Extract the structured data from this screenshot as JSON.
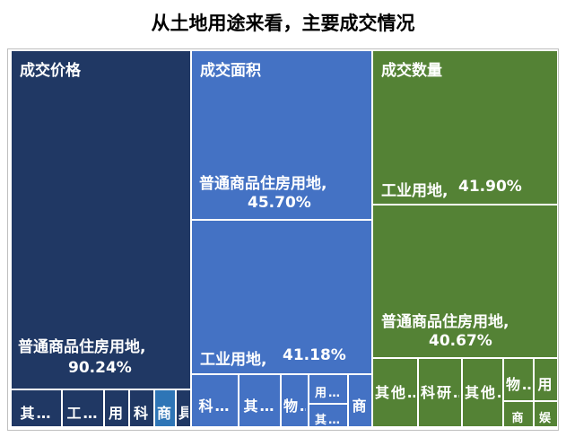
{
  "chart_data": {
    "type": "treemap",
    "title": "从土地用途来看，主要成交情况",
    "groups": [
      {
        "name": "成交价格",
        "color": "#203864",
        "items": [
          {
            "label": "普通商品住房用地,",
            "value_label": "90.24%",
            "value": 90.24
          },
          {
            "label": "其…",
            "value": 3.2
          },
          {
            "label": "工…",
            "value": 2.3
          },
          {
            "label": "用",
            "value": 1.6
          },
          {
            "label": "科",
            "value": 1.3
          },
          {
            "label": "商",
            "value": 1.0,
            "color": "#2e75b6"
          },
          {
            "label": "具",
            "value": 0.36
          }
        ]
      },
      {
        "name": "成交面积",
        "color": "#4472c4",
        "items": [
          {
            "label": "普通商品住房用地,",
            "value_label": "45.70%",
            "value": 45.7
          },
          {
            "label": "工业用地,",
            "value_label": "41.18%",
            "value": 41.18
          },
          {
            "label": "科…",
            "value": 3.2
          },
          {
            "label": "其…",
            "value": 3.0
          },
          {
            "label": "物…",
            "value": 2.1
          },
          {
            "label": "用…",
            "value": 1.6
          },
          {
            "label": "其…",
            "value": 1.5
          },
          {
            "label": "商",
            "value": 1.2
          }
        ]
      },
      {
        "name": "成交数量",
        "color": "#548235",
        "items": [
          {
            "label": "工业用地,",
            "value_label": "41.90%",
            "value": 41.9
          },
          {
            "label": "普通商品住房用地,",
            "value_label": "40.67%",
            "value": 40.67
          },
          {
            "label": "其他…",
            "value": 5.5
          },
          {
            "label": "科研…",
            "value": 4.3
          },
          {
            "label": "其他…",
            "value": 3.4
          },
          {
            "label": "物…",
            "value": 1.9
          },
          {
            "label": "用",
            "value": 1.0
          },
          {
            "label": "商",
            "value": 0.9
          },
          {
            "label": "娱",
            "value": 0.53
          }
        ]
      }
    ]
  }
}
